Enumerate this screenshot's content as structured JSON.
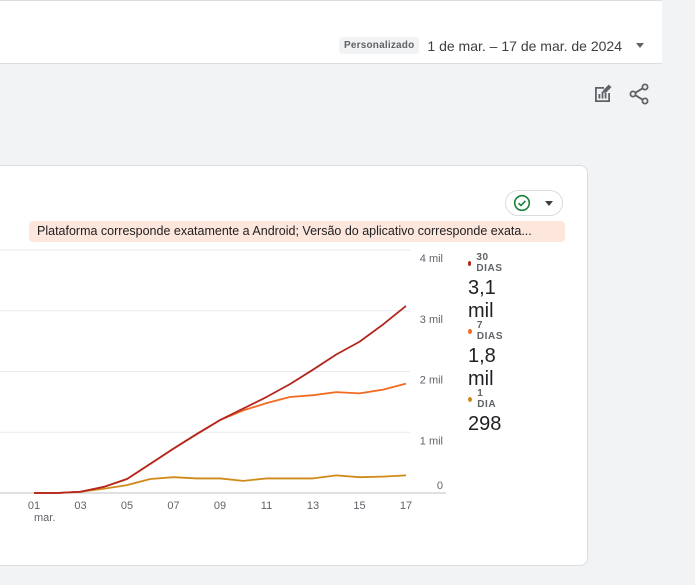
{
  "header": {
    "badge": "Personalizado",
    "date_range": "1 de mar. – 17 de mar. de 2024"
  },
  "toolbar": {
    "icons": [
      "edit-report-icon",
      "share-icon"
    ]
  },
  "card": {
    "filter": "Plataforma corresponde exatamente a Android; Versão do aplicativo corresponde exata...",
    "status_icon": "check-circle-icon"
  },
  "legend": [
    {
      "label": "30 DIAS",
      "value": "3,1 mil",
      "color": "#b3261e"
    },
    {
      "label": "7 DIAS",
      "value": "1,8 mil",
      "color": "#f26b21"
    },
    {
      "label": "1 DIA",
      "value": "298",
      "color": "#d08a1a"
    }
  ],
  "chart_data": {
    "type": "line",
    "x": [
      1,
      2,
      3,
      4,
      5,
      6,
      7,
      8,
      9,
      10,
      11,
      12,
      13,
      14,
      15,
      16,
      17
    ],
    "x_tick_labels": [
      "01",
      "03",
      "05",
      "07",
      "09",
      "11",
      "13",
      "15",
      "17"
    ],
    "x_month_label": "mar.",
    "y_tick_labels": [
      "0",
      "1 mil",
      "2 mil",
      "3 mil",
      "4 mil"
    ],
    "ylim": [
      0,
      4000
    ],
    "y_ticks": [
      0,
      1000,
      2000,
      3000,
      4000
    ],
    "series": [
      {
        "name": "30 DIAS",
        "color": "#b3261e",
        "values": [
          0,
          0,
          20,
          100,
          230,
          480,
          730,
          970,
          1200,
          1390,
          1580,
          1790,
          2030,
          2280,
          2490,
          2770,
          3080
        ]
      },
      {
        "name": "7 DIAS",
        "color": "#f26b21",
        "values": [
          0,
          0,
          20,
          100,
          230,
          480,
          730,
          970,
          1200,
          1360,
          1480,
          1580,
          1610,
          1660,
          1640,
          1700,
          1800
        ]
      },
      {
        "name": "1 DIA",
        "color": "#d08a1a",
        "values": [
          0,
          0,
          20,
          70,
          130,
          230,
          260,
          240,
          240,
          200,
          240,
          240,
          240,
          290,
          260,
          270,
          290
        ]
      }
    ]
  }
}
